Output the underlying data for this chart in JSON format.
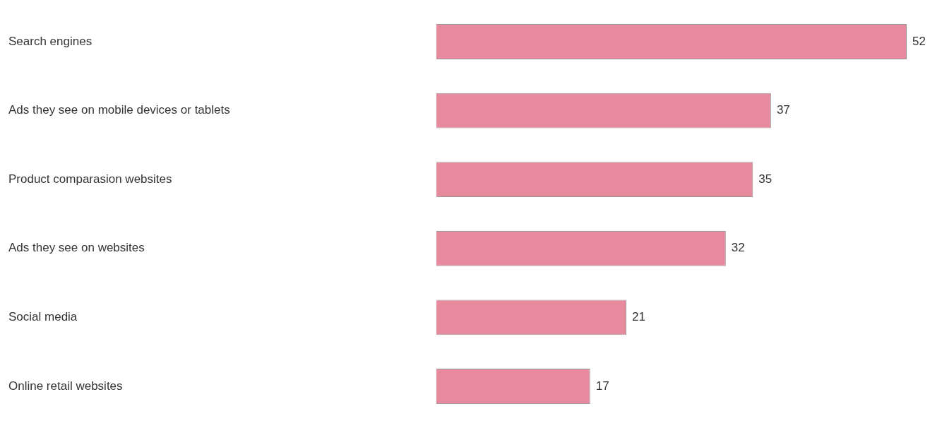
{
  "chart_data": {
    "type": "bar",
    "orientation": "horizontal",
    "categories": [
      "Search engines",
      "Ads they see on mobile devices or tablets",
      "Product comparasion websites",
      "Ads they see on websites",
      "Social media",
      "Online retail websites"
    ],
    "values": [
      52,
      37,
      35,
      32,
      21,
      17
    ],
    "color": "#e88a9e",
    "data_labels": true,
    "legend": false
  }
}
